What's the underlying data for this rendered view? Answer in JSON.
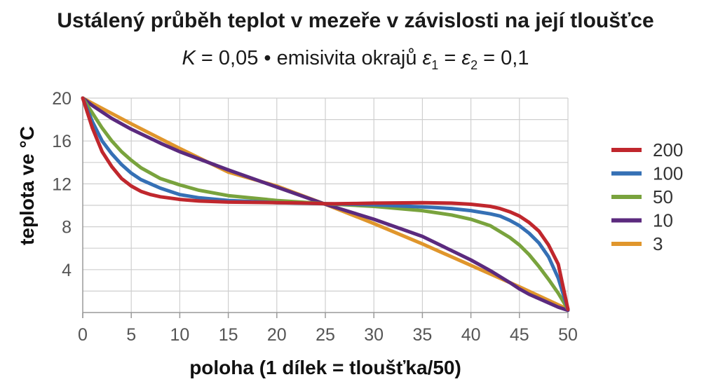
{
  "chart_data": {
    "type": "line",
    "title": "Ustálený průběh teplot v mezeře v závislosti na její tloušťce",
    "subtitle": {
      "prefix": "K",
      "middle": " = 0,05 • emisivita okrajů ",
      "eps": "ε",
      "sub1": "1",
      "sub2": "2",
      "eq": " = ",
      "end": " = 0,1"
    },
    "xlabel": "poloha (1 dílek = tloušťka/50)",
    "ylabel": "teplota ve °C",
    "xlim": [
      0,
      50
    ],
    "ylim": [
      0,
      20
    ],
    "xticks": [
      0,
      5,
      10,
      15,
      20,
      25,
      30,
      35,
      40,
      45,
      50
    ],
    "yticks": [
      4,
      8,
      12,
      16,
      20
    ],
    "grid": true,
    "legend_position": "right",
    "series": [
      {
        "name": "200",
        "color": "#c0272d",
        "x": [
          0,
          1,
          2,
          3,
          4,
          5,
          6,
          7,
          8,
          10,
          12,
          15,
          20,
          22,
          24,
          25,
          26,
          28,
          30,
          35,
          38,
          40,
          42,
          43,
          44,
          45,
          46,
          47,
          48,
          49,
          50
        ],
        "y": [
          20,
          17.2,
          15.0,
          13.6,
          12.5,
          11.8,
          11.3,
          11.0,
          10.8,
          10.55,
          10.4,
          10.3,
          10.25,
          10.22,
          10.18,
          10.15,
          10.15,
          10.17,
          10.2,
          10.25,
          10.2,
          10.1,
          9.9,
          9.7,
          9.4,
          9.0,
          8.4,
          7.6,
          6.3,
          4.5,
          0.3
        ]
      },
      {
        "name": "100",
        "color": "#3570b5",
        "x": [
          0,
          1,
          2,
          3,
          4,
          5,
          6,
          7,
          8,
          10,
          12,
          15,
          20,
          25,
          30,
          35,
          38,
          40,
          42,
          43,
          44,
          45,
          46,
          47,
          48,
          49,
          50
        ],
        "y": [
          20,
          17.8,
          16.0,
          14.8,
          13.8,
          13.0,
          12.4,
          12.0,
          11.6,
          11.0,
          10.7,
          10.45,
          10.25,
          10.15,
          10.05,
          9.85,
          9.7,
          9.5,
          9.2,
          9.0,
          8.6,
          8.1,
          7.4,
          6.5,
          5.2,
          3.2,
          0.3
        ]
      },
      {
        "name": "50",
        "color": "#79a33d",
        "x": [
          0,
          1,
          2,
          3,
          4,
          5,
          6,
          8,
          10,
          12,
          15,
          20,
          25,
          30,
          35,
          38,
          40,
          42,
          44,
          45,
          46,
          47,
          48,
          49,
          50
        ],
        "y": [
          20,
          18.6,
          17.2,
          16.0,
          15.0,
          14.2,
          13.5,
          12.5,
          11.9,
          11.4,
          10.9,
          10.45,
          10.15,
          9.9,
          9.5,
          9.1,
          8.7,
          8.1,
          7.0,
          6.3,
          5.4,
          4.3,
          3.1,
          1.8,
          0.3
        ]
      },
      {
        "name": "10",
        "color": "#5b2a7e",
        "x": [
          0,
          1,
          2,
          3,
          5,
          8,
          10,
          15,
          20,
          25,
          30,
          35,
          40,
          42,
          44,
          45,
          46,
          47,
          48,
          49,
          50
        ],
        "y": [
          20,
          19.3,
          18.7,
          18.1,
          17.1,
          15.8,
          15.0,
          13.3,
          11.7,
          10.1,
          8.7,
          7.1,
          4.9,
          3.9,
          2.8,
          2.2,
          1.7,
          1.3,
          0.9,
          0.5,
          0.2
        ]
      },
      {
        "name": "3",
        "color": "#e0962c",
        "x": [
          0,
          5,
          10,
          15,
          20,
          25,
          30,
          35,
          40,
          45,
          50
        ],
        "y": [
          20,
          17.6,
          15.3,
          13.1,
          11.8,
          10.1,
          8.3,
          6.4,
          4.4,
          2.4,
          0.3
        ]
      }
    ]
  }
}
